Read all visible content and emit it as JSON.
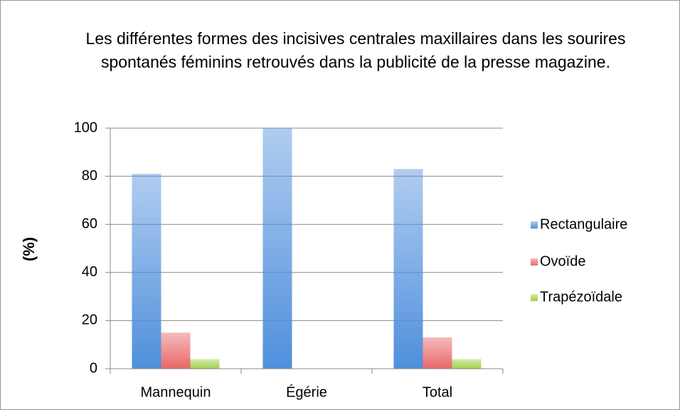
{
  "chart_data": {
    "type": "bar",
    "title": "Les différentes formes des incisives centrales maxillaires dans les sourires spontanés féminins retrouvés dans la publicité de la presse magazine.",
    "ylabel": "(%)",
    "categories": [
      "Mannequin",
      "Égérie",
      "Total"
    ],
    "series": [
      {
        "name": "Rectangulaire",
        "color": "#4f8fdc",
        "values": [
          81,
          100,
          83
        ]
      },
      {
        "name": "Ovoïde",
        "color": "#e86868",
        "values": [
          15,
          0,
          13
        ]
      },
      {
        "name": "Trapézoïdale",
        "color": "#a2d04c",
        "values": [
          4,
          0,
          4
        ]
      }
    ],
    "ylim": [
      0,
      100
    ],
    "yticks": [
      0,
      20,
      40,
      60,
      80,
      100
    ],
    "grid": true,
    "legend": "right"
  }
}
